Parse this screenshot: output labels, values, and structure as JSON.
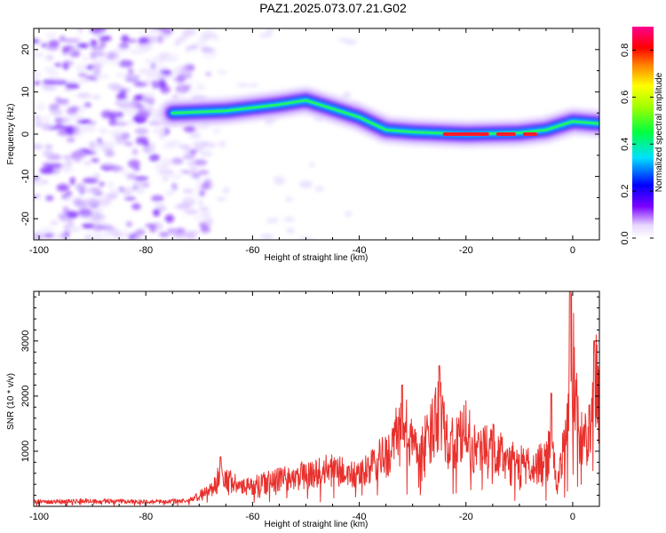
{
  "title": "PAZ1.2025.073.07.21.G02",
  "chart_data": [
    {
      "type": "heatmap",
      "xlabel": "Height of straight line (km)",
      "ylabel": "Frequency (Hz)",
      "xlim": [
        -101,
        5
      ],
      "ylim": [
        -25,
        25
      ],
      "x_ticks": [
        -100,
        -80,
        -60,
        -40,
        -20,
        0
      ],
      "y_ticks": [
        -20,
        -10,
        0,
        10,
        20
      ],
      "colorbar": {
        "label": "Normalized spectral amplitude",
        "range": [
          0,
          0.9
        ],
        "ticks": [
          0.0,
          0.2,
          0.4,
          0.6,
          0.8
        ],
        "colormap": "rainbow (white-violet-blue-cyan-green-yellow-red-magenta)"
      },
      "ridge": {
        "description_points": [
          {
            "x": -75,
            "y": 5.0
          },
          {
            "x": -65,
            "y": 5.5
          },
          {
            "x": -55,
            "y": 7.0
          },
          {
            "x": -50,
            "y": 8.0
          },
          {
            "x": -45,
            "y": 6.0
          },
          {
            "x": -40,
            "y": 4.0
          },
          {
            "x": -35,
            "y": 1.0
          },
          {
            "x": -30,
            "y": 0.5
          },
          {
            "x": -20,
            "y": 0.0
          },
          {
            "x": -10,
            "y": 0.3
          },
          {
            "x": -5,
            "y": 1.0
          },
          {
            "x": 0,
            "y": 3.0
          },
          {
            "x": 5,
            "y": 2.5
          }
        ]
      },
      "noise_region": {
        "x_from": -101,
        "x_to": -70
      }
    },
    {
      "type": "line",
      "xlabel": "Height of straight line (km)",
      "ylabel": "SNR (10 * v/v)",
      "xlim": [
        -101,
        5
      ],
      "ylim": [
        0,
        3900
      ],
      "x_ticks": [
        -100,
        -80,
        -60,
        -40,
        -20,
        0
      ],
      "y_ticks": [
        1000,
        2000,
        3000
      ],
      "color": "#e8302c",
      "envelope": [
        {
          "x": -101,
          "y": 100
        },
        {
          "x": -90,
          "y": 120
        },
        {
          "x": -80,
          "y": 100
        },
        {
          "x": -72,
          "y": 120
        },
        {
          "x": -68,
          "y": 350
        },
        {
          "x": -66,
          "y": 700
        },
        {
          "x": -62,
          "y": 400
        },
        {
          "x": -55,
          "y": 600
        },
        {
          "x": -50,
          "y": 700
        },
        {
          "x": -45,
          "y": 800
        },
        {
          "x": -40,
          "y": 650
        },
        {
          "x": -37,
          "y": 950
        },
        {
          "x": -34,
          "y": 1200
        },
        {
          "x": -32,
          "y": 1900
        },
        {
          "x": -30,
          "y": 1300
        },
        {
          "x": -27,
          "y": 1400
        },
        {
          "x": -25,
          "y": 2300
        },
        {
          "x": -23,
          "y": 1300
        },
        {
          "x": -20,
          "y": 1600
        },
        {
          "x": -18,
          "y": 1200
        },
        {
          "x": -15,
          "y": 1300
        },
        {
          "x": -12,
          "y": 1000
        },
        {
          "x": -8,
          "y": 900
        },
        {
          "x": -5,
          "y": 1000
        },
        {
          "x": -4,
          "y": 1500
        },
        {
          "x": -3,
          "y": 400
        },
        {
          "x": -1,
          "y": 1800
        },
        {
          "x": -0.5,
          "y": 3900
        },
        {
          "x": 1,
          "y": 1800
        },
        {
          "x": 2,
          "y": 1400
        },
        {
          "x": 3,
          "y": 1600
        },
        {
          "x": 4,
          "y": 3000
        },
        {
          "x": 5,
          "y": 2200
        }
      ],
      "peaks": [
        {
          "x": -66,
          "y": 900
        },
        {
          "x": -32,
          "y": 2200
        },
        {
          "x": -25,
          "y": 2550
        },
        {
          "x": -4,
          "y": 2050
        },
        {
          "x": -0.5,
          "y": 3900
        },
        {
          "x": 4,
          "y": 3000
        }
      ]
    }
  ]
}
